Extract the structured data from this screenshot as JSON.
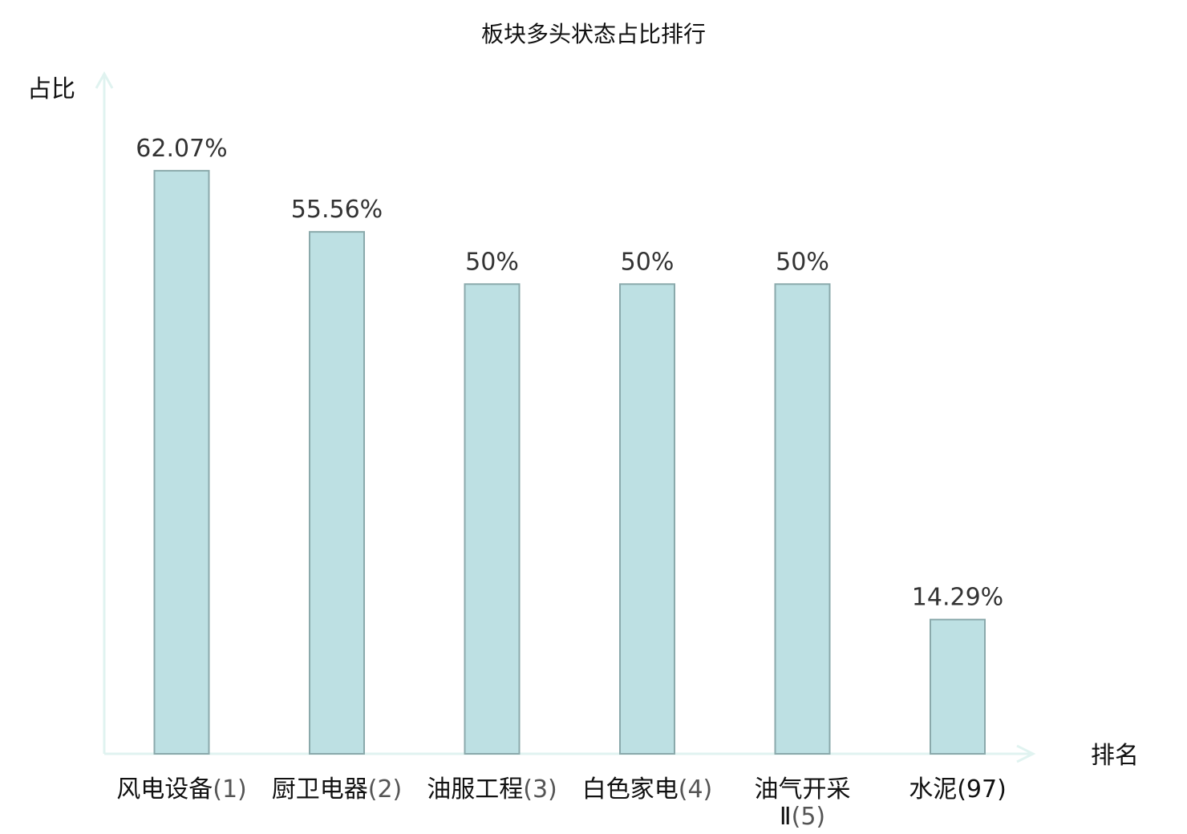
{
  "chart_data": {
    "type": "bar",
    "title": "板块多头状态占比排行",
    "ylabel": "占比",
    "xlabel": "排名",
    "ylim": [
      0,
      70
    ],
    "grid": false,
    "legend": "none",
    "categories": [
      {
        "name": "风电设备",
        "rank": "(1)",
        "highlight": false
      },
      {
        "name": "厨卫电器",
        "rank": "(2)",
        "highlight": false
      },
      {
        "name": "油服工程",
        "rank": "(3)",
        "highlight": false
      },
      {
        "name": "白色家电",
        "rank": "(4)",
        "highlight": false
      },
      {
        "name": "油气开采",
        "name_line2": "Ⅱ",
        "rank": "(5)",
        "highlight": false
      },
      {
        "name": "水泥",
        "rank": "(97)",
        "highlight": true
      }
    ],
    "values": [
      62.07,
      55.56,
      50,
      50,
      50,
      14.29
    ],
    "value_labels": [
      "62.07%",
      "55.56%",
      "50%",
      "50%",
      "50%",
      "14.29%"
    ]
  },
  "colors": {
    "bar_fill": "#bde0e3",
    "bar_stroke": "#8aa9ab",
    "axis": "#e0f3f0",
    "highlight_text": "#e0201e",
    "text": "#111111"
  }
}
